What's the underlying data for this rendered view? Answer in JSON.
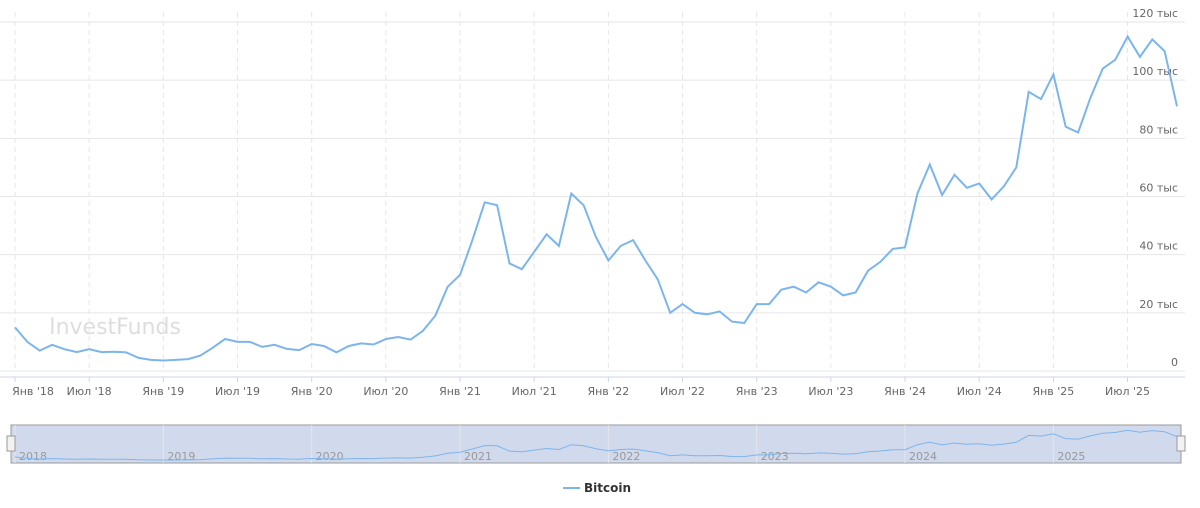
{
  "chart_data": {
    "type": "line",
    "watermark": "InvestFunds",
    "x": [
      "2018-01",
      "2018-02",
      "2018-03",
      "2018-04",
      "2018-05",
      "2018-06",
      "2018-07",
      "2018-08",
      "2018-09",
      "2018-10",
      "2018-11",
      "2018-12",
      "2019-01",
      "2019-02",
      "2019-03",
      "2019-04",
      "2019-05",
      "2019-06",
      "2019-07",
      "2019-08",
      "2019-09",
      "2019-10",
      "2019-11",
      "2019-12",
      "2020-01",
      "2020-02",
      "2020-03",
      "2020-04",
      "2020-05",
      "2020-06",
      "2020-07",
      "2020-08",
      "2020-09",
      "2020-10",
      "2020-11",
      "2020-12",
      "2021-01",
      "2021-02",
      "2021-03",
      "2021-04",
      "2021-05",
      "2021-06",
      "2021-07",
      "2021-08",
      "2021-09",
      "2021-10",
      "2021-11",
      "2021-12",
      "2022-01",
      "2022-02",
      "2022-03",
      "2022-04",
      "2022-05",
      "2022-06",
      "2022-07",
      "2022-08",
      "2022-09",
      "2022-10",
      "2022-11",
      "2022-12",
      "2023-01",
      "2023-02",
      "2023-03",
      "2023-04",
      "2023-05",
      "2023-06",
      "2023-07",
      "2023-08",
      "2023-09",
      "2023-10",
      "2023-11",
      "2023-12",
      "2024-01",
      "2024-02",
      "2024-03",
      "2024-04",
      "2024-05",
      "2024-06",
      "2024-07",
      "2024-08",
      "2024-09",
      "2024-10",
      "2024-11",
      "2024-12",
      "2025-01",
      "2025-02",
      "2025-03",
      "2025-04",
      "2025-05",
      "2025-06",
      "2025-07",
      "2025-08",
      "2025-09",
      "2025-10",
      "2025-11"
    ],
    "series": [
      {
        "name": "Bitcoin",
        "color": "#7cb5ec",
        "values": [
          15000,
          10000,
          7000,
          9000,
          7500,
          6500,
          7500,
          6500,
          6600,
          6400,
          4500,
          3800,
          3600,
          3800,
          4100,
          5300,
          8000,
          11000,
          10000,
          10000,
          8300,
          9000,
          7600,
          7200,
          9300,
          8600,
          6400,
          8600,
          9500,
          9100,
          11000,
          11700,
          10800,
          13800,
          19000,
          29000,
          33000,
          45000,
          58000,
          57000,
          37000,
          35000,
          41000,
          47000,
          43000,
          61000,
          57000,
          46000,
          38000,
          43000,
          45000,
          38000,
          31500,
          20000,
          23000,
          20000,
          19500,
          20500,
          17000,
          16500,
          23000,
          23000,
          28000,
          29000,
          27000,
          30500,
          29000,
          26000,
          27000,
          34500,
          37500,
          42000,
          42500,
          61000,
          71000,
          60500,
          67500,
          63000,
          64500,
          59000,
          63500,
          70000,
          96000,
          93500,
          102000,
          84000,
          82000,
          94000,
          104000,
          107000,
          115000,
          108000,
          114000,
          110000,
          91000
        ]
      }
    ],
    "ylim": [
      0,
      120000
    ],
    "yticks": [
      {
        "value": 0,
        "label": "0"
      },
      {
        "value": 20000,
        "label": "20 тыс"
      },
      {
        "value": 40000,
        "label": "40 тыс"
      },
      {
        "value": 60000,
        "label": "60 тыс"
      },
      {
        "value": 80000,
        "label": "80 тыс"
      },
      {
        "value": 100000,
        "label": "100 тыс"
      },
      {
        "value": 120000,
        "label": "120 тыс"
      }
    ],
    "xticks": [
      {
        "value": "2018-01",
        "label": "Янв '18"
      },
      {
        "value": "2018-07",
        "label": "Июл '18"
      },
      {
        "value": "2019-01",
        "label": "Янв '19"
      },
      {
        "value": "2019-07",
        "label": "Июл '19"
      },
      {
        "value": "2020-01",
        "label": "Янв '20"
      },
      {
        "value": "2020-07",
        "label": "Июл '20"
      },
      {
        "value": "2021-01",
        "label": "Янв '21"
      },
      {
        "value": "2021-07",
        "label": "Июл '21"
      },
      {
        "value": "2022-01",
        "label": "Янв '22"
      },
      {
        "value": "2022-07",
        "label": "Июл '22"
      },
      {
        "value": "2023-01",
        "label": "Янв '23"
      },
      {
        "value": "2023-07",
        "label": "Июл '23"
      },
      {
        "value": "2024-01",
        "label": "Янв '24"
      },
      {
        "value": "2024-07",
        "label": "Июл '24"
      },
      {
        "value": "2025-01",
        "label": "Янв '25"
      },
      {
        "value": "2025-07",
        "label": "Июл '25"
      }
    ],
    "navigator_xticks": [
      {
        "value": "2018-01",
        "label": "2018"
      },
      {
        "value": "2019-01",
        "label": "2019"
      },
      {
        "value": "2020-01",
        "label": "2020"
      },
      {
        "value": "2021-01",
        "label": "2021"
      },
      {
        "value": "2022-01",
        "label": "2022"
      },
      {
        "value": "2023-01",
        "label": "2023"
      },
      {
        "value": "2024-01",
        "label": "2024"
      },
      {
        "value": "2025-01",
        "label": "2025"
      }
    ],
    "grid": true
  }
}
